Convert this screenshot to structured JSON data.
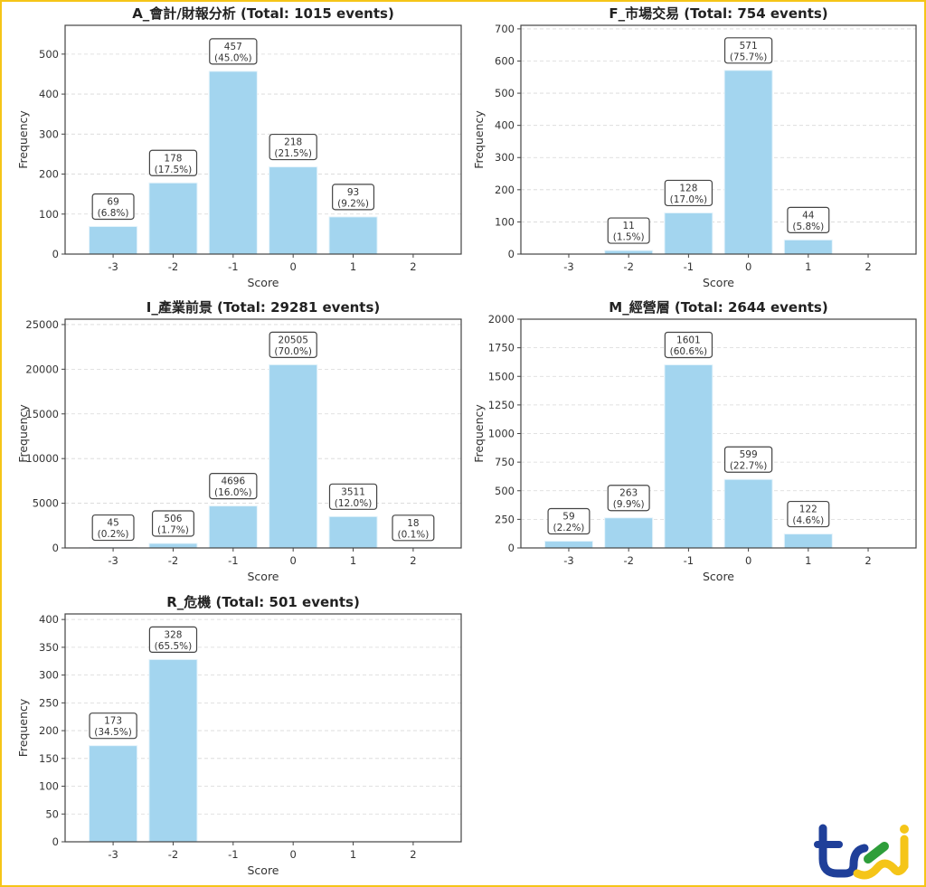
{
  "colors": {
    "bar": "#a3d5ef",
    "bar_edge": "#e6f4fb",
    "axis": "#444444",
    "grid": "#d8d8d8",
    "frame": "#f5c518",
    "logo_blue": "#1f3f99",
    "logo_yellow": "#f5c518",
    "logo_green": "#2e9e3a"
  },
  "logo": {
    "text": "tej",
    "icon": "tej-logo"
  },
  "chart_data": [
    {
      "type": "bar",
      "title": "A_會計/財報分析 (Total: 1015 events)",
      "xlabel": "Score",
      "ylabel": "Frequency",
      "categories": [
        "-3",
        "-2",
        "-1",
        "0",
        "1",
        "2"
      ],
      "values": [
        69,
        178,
        457,
        218,
        93,
        0
      ],
      "labels": [
        "69\n(6.8%)",
        "178\n(17.5%)",
        "457\n(45.0%)",
        "218\n(21.5%)",
        "93\n(9.2%)",
        null
      ],
      "ylim": [
        0,
        572
      ],
      "yticks": [
        0,
        100,
        200,
        300,
        400,
        500
      ],
      "grid": "y-dashed"
    },
    {
      "type": "bar",
      "title": "F_市場交易 (Total: 754 events)",
      "xlabel": "Score",
      "ylabel": "Frequency",
      "categories": [
        "-3",
        "-2",
        "-1",
        "0",
        "1",
        "2"
      ],
      "values": [
        0,
        11,
        128,
        571,
        44,
        0
      ],
      "labels": [
        null,
        "11\n(1.5%)",
        "128\n(17.0%)",
        "571\n(75.7%)",
        "44\n(5.8%)",
        null
      ],
      "ylim": [
        0,
        711
      ],
      "yticks": [
        0,
        100,
        200,
        300,
        400,
        500,
        600,
        700
      ],
      "grid": "y-dashed"
    },
    {
      "type": "bar",
      "title": "I_產業前景 (Total: 29281 events)",
      "xlabel": "Score",
      "ylabel": "Frequency",
      "categories": [
        "-3",
        "-2",
        "-1",
        "0",
        "1",
        "2"
      ],
      "values": [
        45,
        506,
        4696,
        20505,
        3511,
        18
      ],
      "labels": [
        "45\n(0.2%)",
        "506\n(1.7%)",
        "4696\n(16.0%)",
        "20505\n(70.0%)",
        "3511\n(12.0%)",
        "18\n(0.1%)"
      ],
      "ylim": [
        0,
        25600
      ],
      "yticks": [
        0,
        5000,
        10000,
        15000,
        20000,
        25000
      ],
      "grid": "y-dashed"
    },
    {
      "type": "bar",
      "title": "M_經營層 (Total: 2644 events)",
      "xlabel": "Score",
      "ylabel": "Frequency",
      "categories": [
        "-3",
        "-2",
        "-1",
        "0",
        "1",
        "2"
      ],
      "values": [
        59,
        263,
        1601,
        599,
        122,
        0
      ],
      "labels": [
        "59\n(2.2%)",
        "263\n(9.9%)",
        "1601\n(60.6%)",
        "599\n(22.7%)",
        "122\n(4.6%)",
        null
      ],
      "ylim": [
        0,
        2000
      ],
      "yticks": [
        0,
        250,
        500,
        750,
        1000,
        1250,
        1500,
        1750,
        2000
      ],
      "grid": "y-dashed"
    },
    {
      "type": "bar",
      "title": "R_危機 (Total: 501 events)",
      "xlabel": "Score",
      "ylabel": "Frequency",
      "categories": [
        "-3",
        "-2",
        "-1",
        "0",
        "1",
        "2"
      ],
      "values": [
        173,
        328,
        0,
        0,
        0,
        0
      ],
      "labels": [
        "173\n(34.5%)",
        "328\n(65.5%)",
        null,
        null,
        null,
        null
      ],
      "ylim": [
        0,
        410
      ],
      "yticks": [
        0,
        50,
        100,
        150,
        200,
        250,
        300,
        350,
        400
      ],
      "grid": "y-dashed"
    }
  ]
}
